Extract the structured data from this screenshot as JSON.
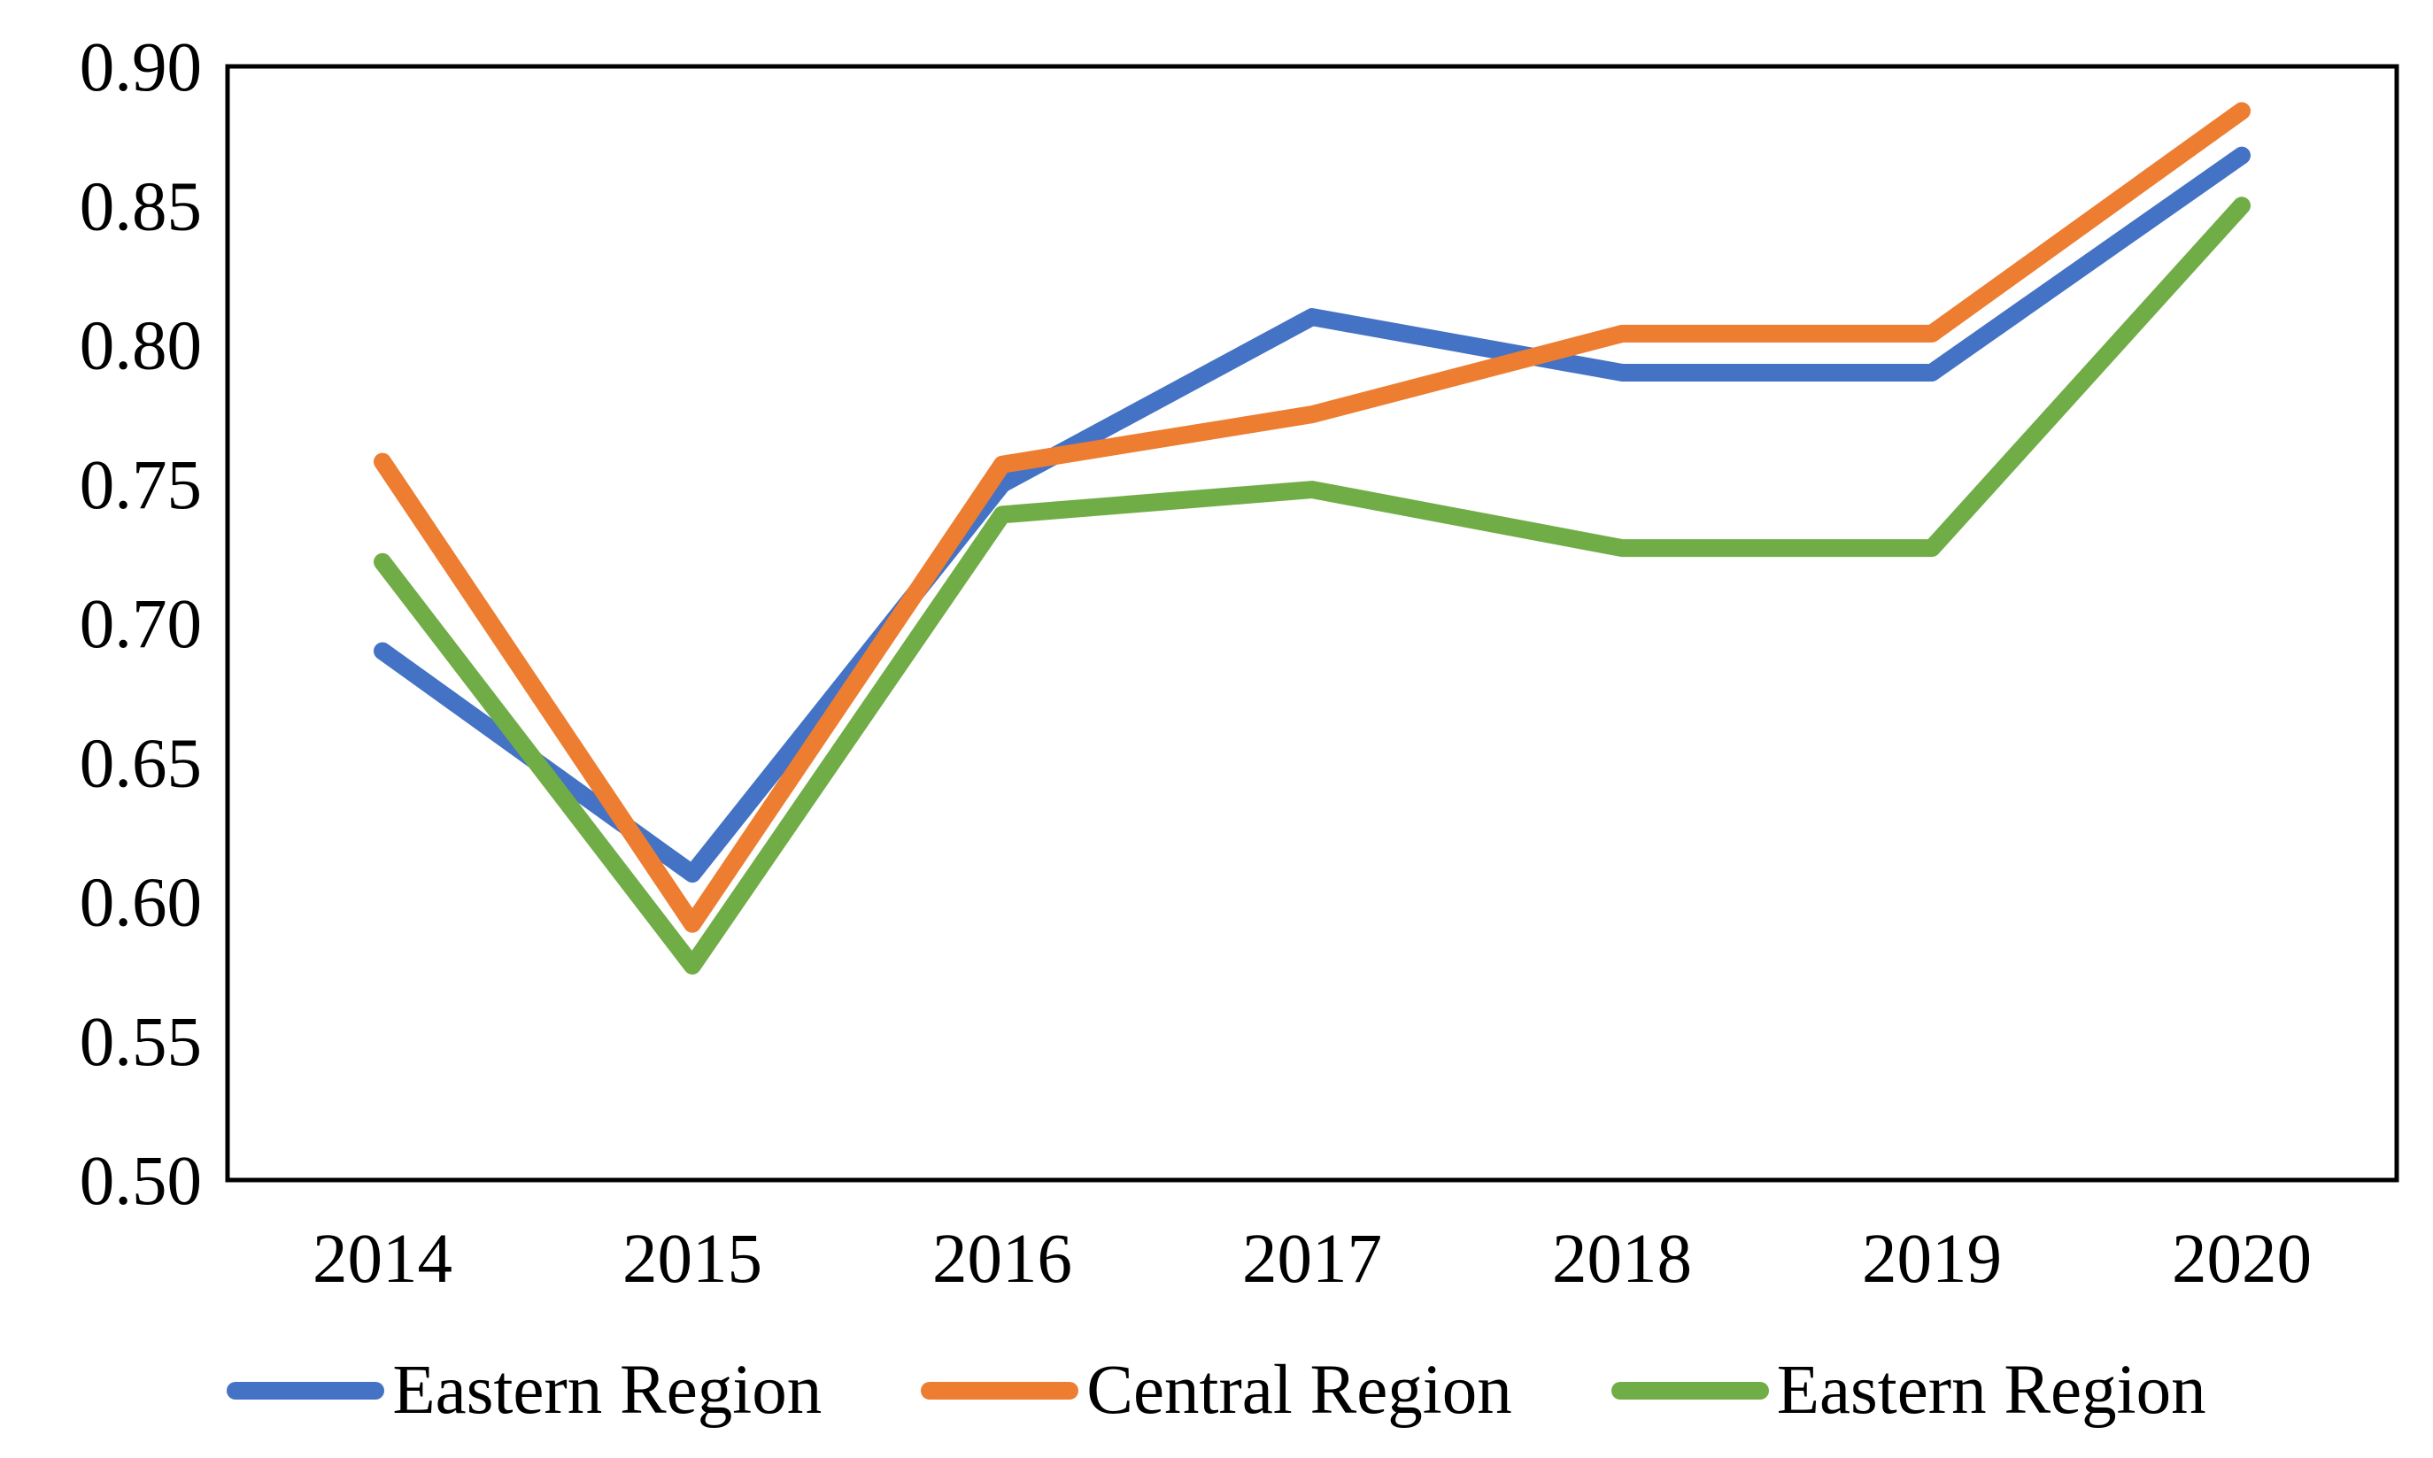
{
  "chart_data": {
    "type": "line",
    "title": "",
    "xlabel": "",
    "ylabel": "",
    "categories": [
      "2014",
      "2015",
      "2016",
      "2017",
      "2018",
      "2019",
      "2020"
    ],
    "series": [
      {
        "name": "Eastern Region",
        "color": "#4472C4",
        "values": [
          0.69,
          0.61,
          0.75,
          0.81,
          0.79,
          0.79,
          0.868
        ]
      },
      {
        "name": "Central Region",
        "color": "#ED7D31",
        "values": [
          0.758,
          0.592,
          0.757,
          0.775,
          0.804,
          0.804,
          0.884
        ]
      },
      {
        "name": "Eastern Region",
        "color": "#70AD47",
        "values": [
          0.722,
          0.577,
          0.739,
          0.748,
          0.727,
          0.727,
          0.85
        ]
      }
    ],
    "ylim": [
      0.5,
      0.9
    ],
    "y_ticks": [
      "0.90",
      "0.85",
      "0.80",
      "0.75",
      "0.70",
      "0.65",
      "0.60",
      "0.55",
      "0.50"
    ],
    "grid": false,
    "legend_position": "bottom",
    "plot_border_color": "#000000",
    "text_color": "#000000",
    "background_color": "#ffffff"
  }
}
